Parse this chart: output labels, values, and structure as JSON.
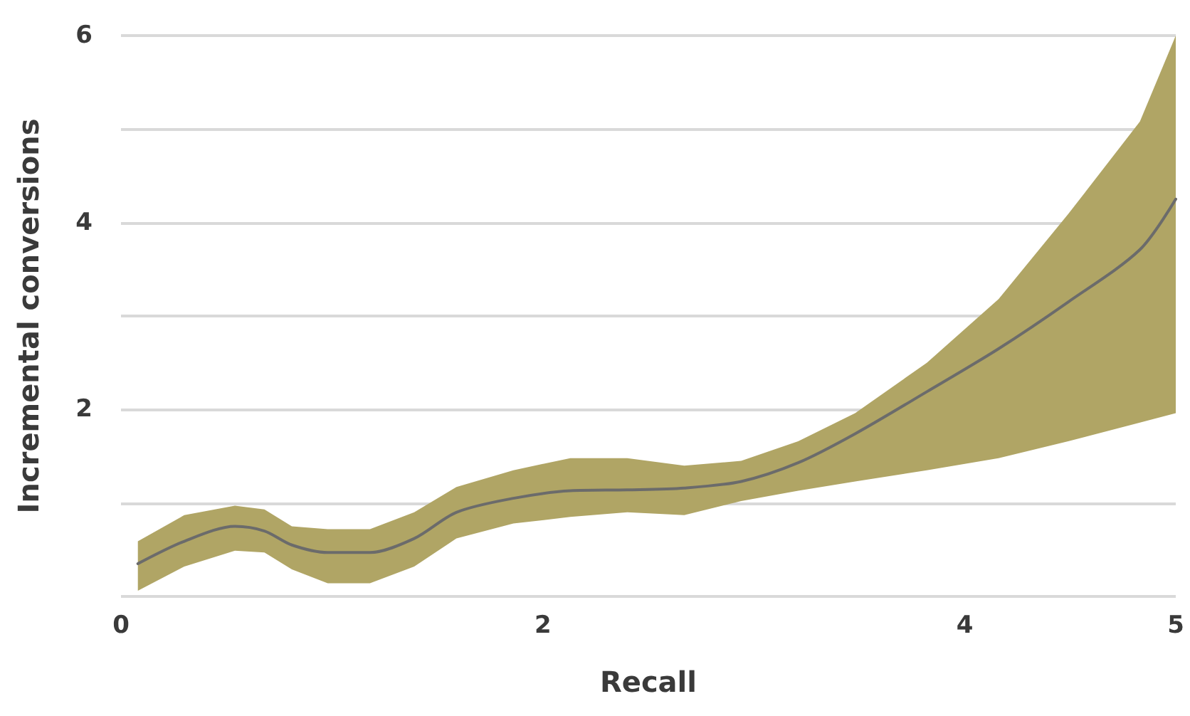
{
  "chart_data": {
    "type": "line",
    "xlabel": "Recall",
    "ylabel": "Incremental conversions",
    "xlim": [
      0,
      5
    ],
    "xticks": [
      0,
      2,
      4,
      5
    ],
    "ylim": [
      0,
      6
    ],
    "yticks": [
      {
        "value": 0,
        "label": null
      },
      {
        "value": 1,
        "label": null
      },
      2,
      {
        "value": 3,
        "label": null
      },
      4,
      {
        "value": 5,
        "label": null
      },
      6
    ],
    "grid": "y",
    "marker": "none",
    "line_style": "solid",
    "series": [
      {
        "color": "#6b6b6b",
        "x": [
          0.08,
          0.3,
          0.54,
          0.68,
          0.81,
          0.98,
          1.18,
          1.39,
          1.59,
          1.86,
          2.13,
          2.4,
          2.67,
          2.94,
          3.21,
          3.48,
          3.82,
          4.16,
          4.49,
          4.83,
          5.0
        ],
        "values": [
          0.35,
          0.59,
          0.75,
          0.7,
          0.55,
          0.47,
          0.47,
          0.62,
          0.9,
          1.05,
          1.13,
          1.14,
          1.16,
          1.23,
          1.43,
          1.74,
          2.19,
          2.65,
          3.15,
          3.71,
          4.25
        ],
        "upper": [
          0.59,
          0.87,
          0.97,
          0.93,
          0.75,
          0.72,
          0.72,
          0.9,
          1.17,
          1.35,
          1.48,
          1.48,
          1.4,
          1.45,
          1.66,
          1.96,
          2.5,
          3.18,
          4.09,
          5.08,
          6.0
        ],
        "lower": [
          0.06,
          0.32,
          0.49,
          0.47,
          0.29,
          0.14,
          0.14,
          0.32,
          0.62,
          0.78,
          0.85,
          0.9,
          0.87,
          1.02,
          1.13,
          1.23,
          1.35,
          1.48,
          1.66,
          1.86,
          1.96
        ]
      }
    ]
  }
}
